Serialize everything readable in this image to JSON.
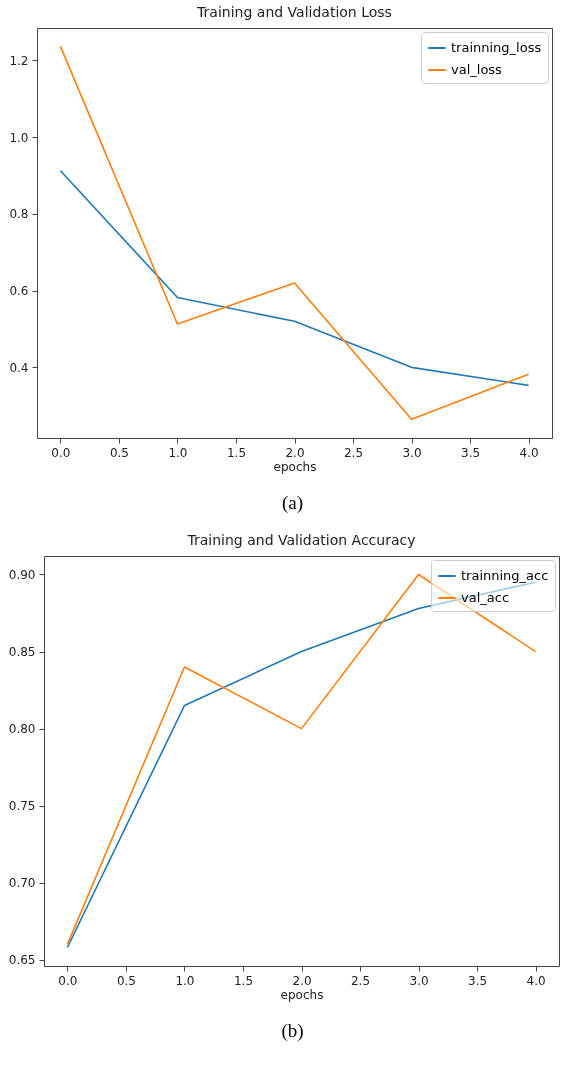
{
  "chart_data": [
    {
      "type": "line",
      "title": "Training and Validation Loss",
      "xlabel": "epochs",
      "annotations": [
        "(a)"
      ],
      "x": [
        0,
        1,
        2,
        3,
        4
      ],
      "series": [
        {
          "name": "trainning_loss",
          "color": "#1f77b4",
          "values": [
            0.912,
            0.582,
            0.52,
            0.4,
            0.353
          ]
        },
        {
          "name": "val_loss",
          "color": "#ff7f0e",
          "values": [
            1.236,
            0.513,
            0.62,
            0.265,
            0.382
          ]
        }
      ],
      "xlim": [
        -0.2,
        4.2
      ],
      "xticks": [
        {
          "value": 0,
          "label": "0.0"
        },
        0.5,
        {
          "value": 1,
          "label": "1.0"
        },
        1.5,
        {
          "value": 2,
          "label": "2.0"
        },
        2.5,
        {
          "value": 3,
          "label": "3.0"
        },
        3.5,
        {
          "value": 4,
          "label": "4.0"
        }
      ],
      "ylim": [
        0.216,
        1.284
      ],
      "yticks": [
        0.4,
        0.6,
        0.8,
        {
          "value": 1,
          "label": "1.0"
        },
        1.2
      ],
      "legend": "top right"
    },
    {
      "type": "line",
      "title": "Training and Validation Accuracy",
      "xlabel": "epochs",
      "annotations": [
        "(b)"
      ],
      "x": [
        0,
        1,
        2,
        3,
        4
      ],
      "series": [
        {
          "name": "trainning_acc",
          "color": "#1f77b4",
          "values": [
            0.658,
            0.815,
            0.85,
            0.878,
            0.895
          ]
        },
        {
          "name": "val_acc",
          "color": "#ff7f0e",
          "values": [
            0.66,
            0.84,
            0.8,
            0.9,
            0.85
          ]
        }
      ],
      "xlim": [
        -0.2,
        4.2
      ],
      "xticks": [
        {
          "value": 0,
          "label": "0.0"
        },
        0.5,
        {
          "value": 1,
          "label": "1.0"
        },
        1.5,
        {
          "value": 2,
          "label": "2.0"
        },
        2.5,
        {
          "value": 3,
          "label": "3.0"
        },
        3.5,
        {
          "value": 4,
          "label": "4.0"
        }
      ],
      "ylim": [
        0.646,
        0.912
      ],
      "yticks": [
        0.65,
        {
          "value": 0.7,
          "label": "0.70"
        },
        0.75,
        {
          "value": 0.8,
          "label": "0.80"
        },
        0.85,
        {
          "value": 0.9,
          "label": "0.90"
        }
      ],
      "legend": "top right"
    }
  ]
}
